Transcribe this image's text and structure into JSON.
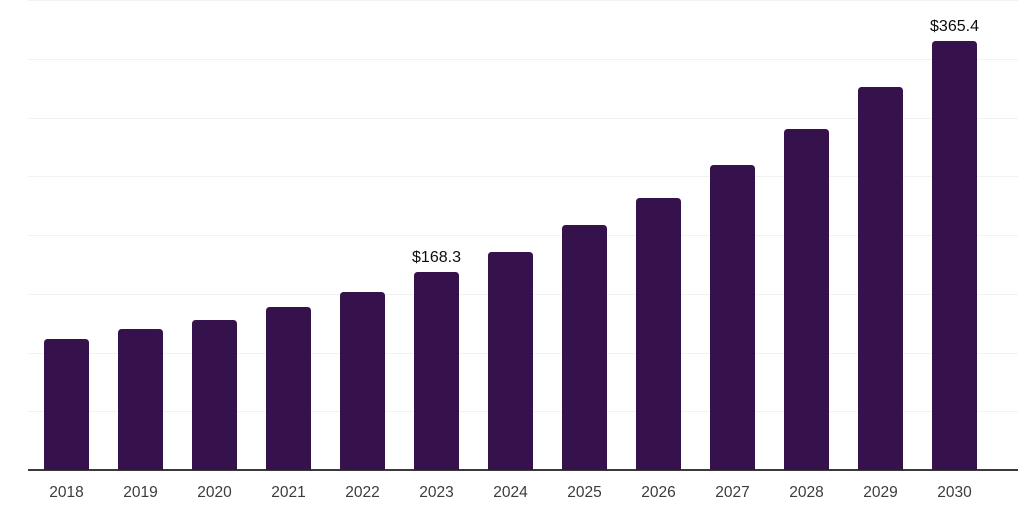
{
  "chart_data": {
    "type": "bar",
    "title": "",
    "xlabel": "",
    "ylabel": "",
    "categories": [
      "2018",
      "2019",
      "2020",
      "2021",
      "2022",
      "2023",
      "2024",
      "2025",
      "2026",
      "2027",
      "2028",
      "2029",
      "2030"
    ],
    "values": [
      111.5,
      119.8,
      127.4,
      138.5,
      151.7,
      168.3,
      185.7,
      208.3,
      231.7,
      259.8,
      290.0,
      325.9,
      365.4
    ],
    "data_labels": [
      {
        "index": 5,
        "text": "$168.3"
      },
      {
        "index": 12,
        "text": "$365.4"
      }
    ],
    "unit_prefix": "$",
    "ylim": [
      0,
      400
    ],
    "gridline_step": 50,
    "grid": "horizontal",
    "legend": "none",
    "colors": {
      "bar": "#35124b",
      "axis_line": "#3a3a3a",
      "gridline": "#f2f2f2",
      "x_tick_text": "#3c3c3c",
      "data_label_text": "#0d0d0d",
      "background": "#ffffff"
    }
  }
}
